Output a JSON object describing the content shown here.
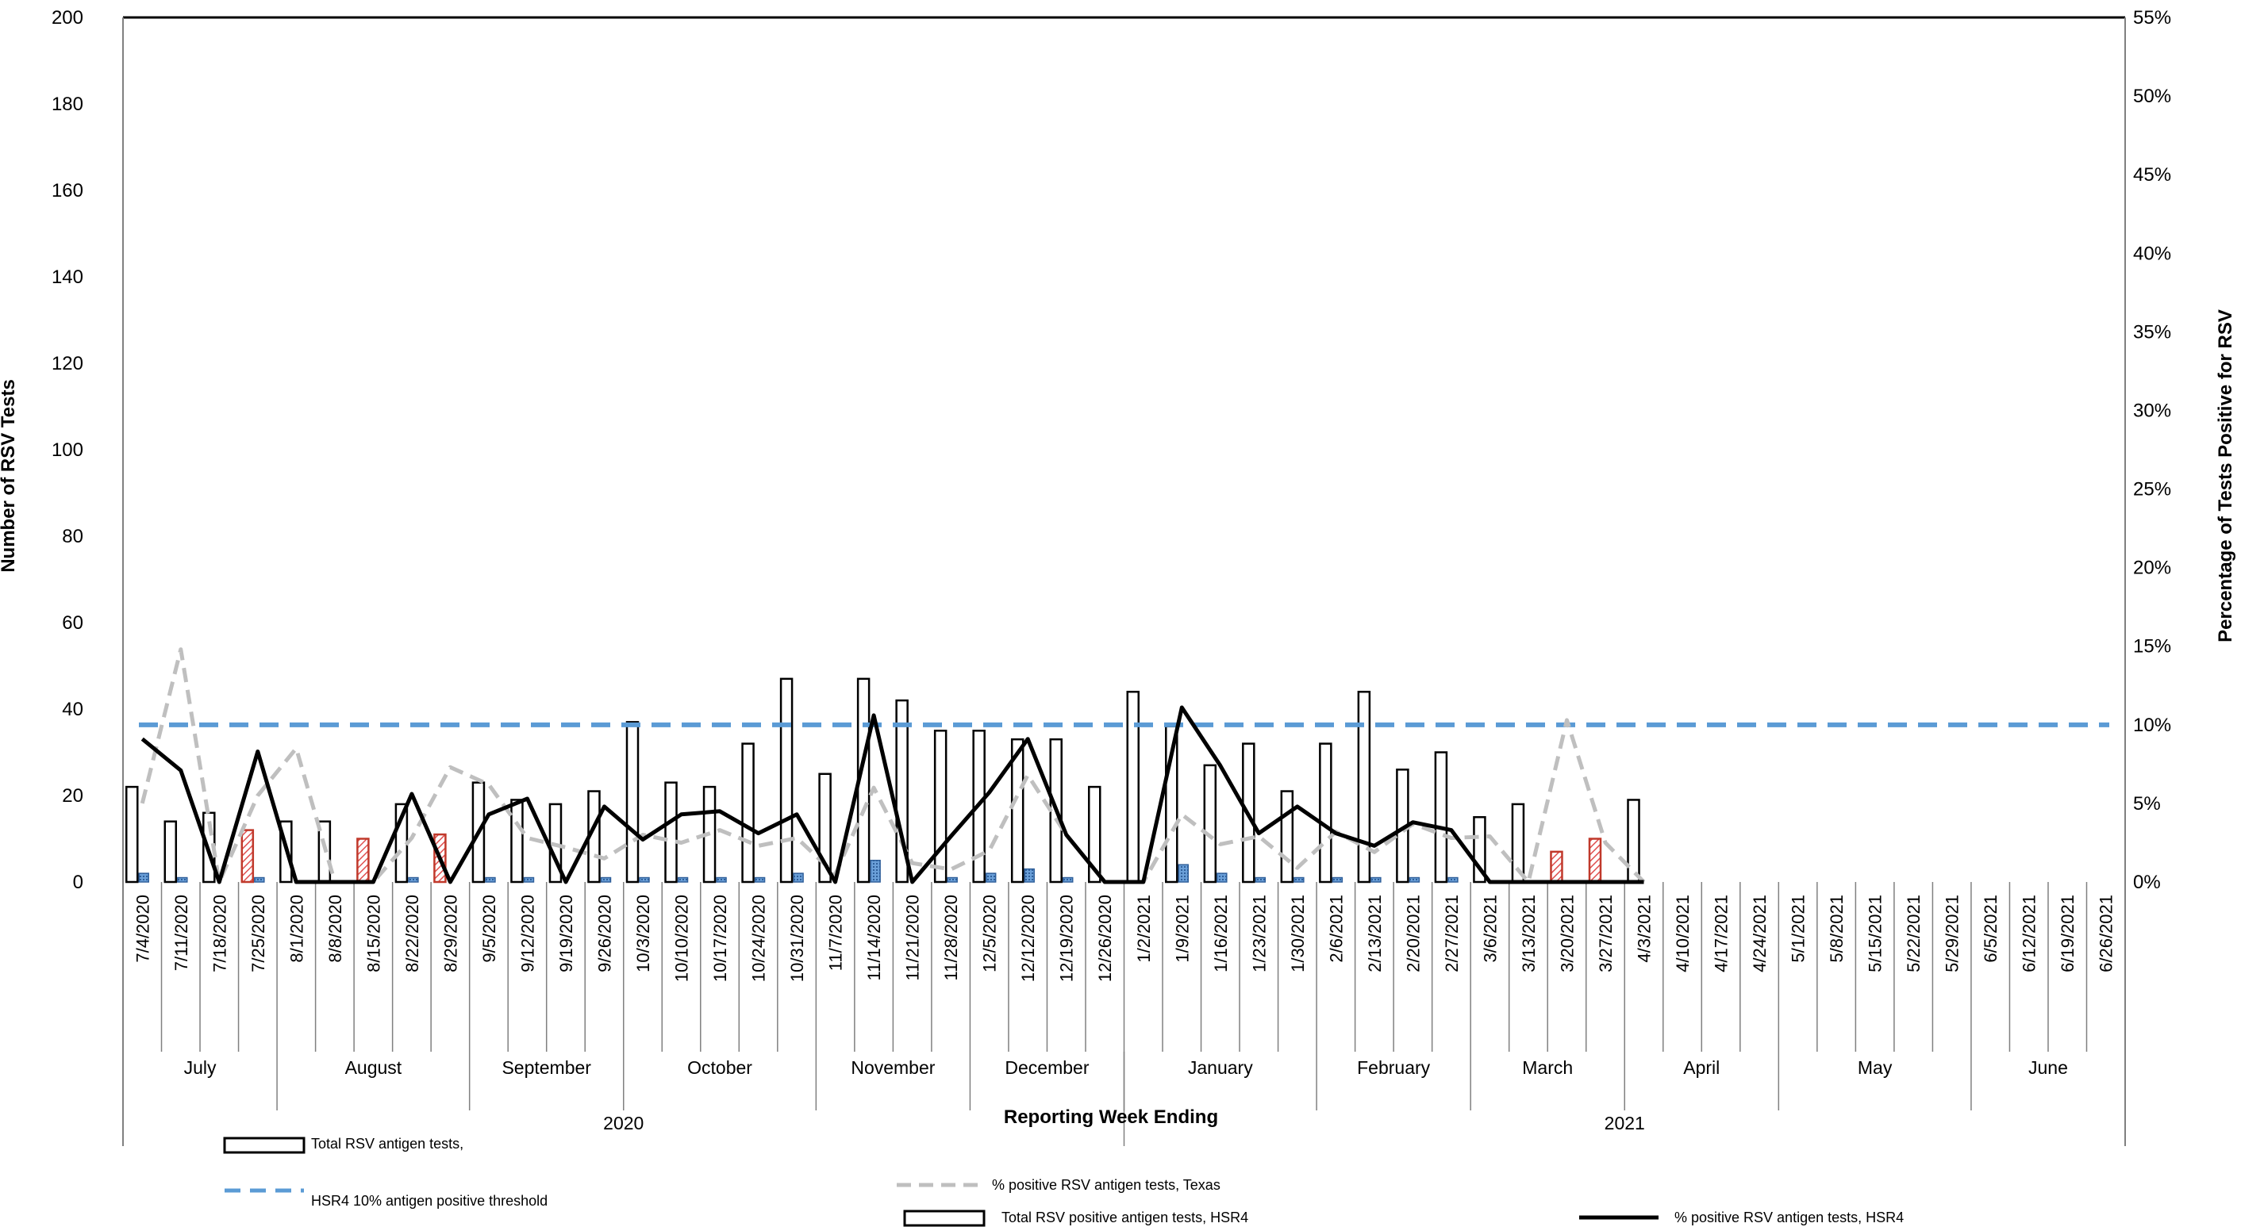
{
  "chart_data": {
    "type": "bar",
    "xlabel": "Reporting Week Ending",
    "ylabel_left": "Number of RSV Tests",
    "ylabel_right": "Percentage of Tests Positive for RSV",
    "ylim_left": [
      0,
      200
    ],
    "ylim_right": [
      0,
      55
    ],
    "left_ticks": [
      "0",
      "20",
      "40",
      "60",
      "80",
      "100",
      "120",
      "140",
      "160",
      "180",
      "200"
    ],
    "right_ticks": [
      "0%",
      "5%",
      "10%",
      "15%",
      "20%",
      "25%",
      "30%",
      "35%",
      "40%",
      "45%",
      "50%",
      "55%"
    ],
    "categories": [
      "7/4/2020",
      "7/11/2020",
      "7/18/2020",
      "7/25/2020",
      "8/1/2020",
      "8/8/2020",
      "8/15/2020",
      "8/22/2020",
      "8/29/2020",
      "9/5/2020",
      "9/12/2020",
      "9/19/2020",
      "9/26/2020",
      "10/3/2020",
      "10/10/2020",
      "10/17/2020",
      "10/24/2020",
      "10/31/2020",
      "11/7/2020",
      "11/14/2020",
      "11/21/2020",
      "11/28/2020",
      "12/5/2020",
      "12/12/2020",
      "12/19/2020",
      "12/26/2020",
      "1/2/2021",
      "1/9/2021",
      "1/16/2021",
      "1/23/2021",
      "1/30/2021",
      "2/6/2021",
      "2/13/2021",
      "2/20/2021",
      "2/27/2021",
      "3/6/2021",
      "3/13/2021",
      "3/20/2021",
      "3/27/2021",
      "4/3/2021",
      "4/10/2021",
      "4/17/2021",
      "4/24/2021",
      "5/1/2021",
      "5/8/2021",
      "5/15/2021",
      "5/22/2021",
      "5/29/2021",
      "6/5/2021",
      "6/12/2021",
      "6/19/2021",
      "6/26/2021"
    ],
    "months": [
      {
        "label": "July",
        "start": 0,
        "end": 3
      },
      {
        "label": "August",
        "start": 4,
        "end": 8
      },
      {
        "label": "September",
        "start": 9,
        "end": 12
      },
      {
        "label": "October",
        "start": 13,
        "end": 17
      },
      {
        "label": "November",
        "start": 18,
        "end": 21
      },
      {
        "label": "December",
        "start": 22,
        "end": 25
      },
      {
        "label": "January",
        "start": 26,
        "end": 30
      },
      {
        "label": "February",
        "start": 31,
        "end": 34
      },
      {
        "label": "March",
        "start": 35,
        "end": 38
      },
      {
        "label": "April",
        "start": 39,
        "end": 42
      },
      {
        "label": "May",
        "start": 43,
        "end": 47
      },
      {
        "label": "June",
        "start": 48,
        "end": 51
      }
    ],
    "years": [
      {
        "label": "2020",
        "start": 0,
        "end": 25
      },
      {
        "label": "2021",
        "start": 26,
        "end": 51
      }
    ],
    "series": [
      {
        "name": "Total RSV antigen tests,",
        "type": "bar",
        "axis": "left",
        "color": "#ffffff",
        "values": [
          22,
          14,
          16,
          12,
          14,
          14,
          10,
          18,
          11,
          23,
          19,
          18,
          21,
          37,
          23,
          22,
          32,
          47,
          25,
          47,
          42,
          35,
          35,
          33,
          33,
          22,
          44,
          36,
          27,
          32,
          21,
          32,
          44,
          26,
          30,
          15,
          18,
          7,
          10,
          19,
          null,
          null,
          null,
          null,
          null,
          null,
          null,
          null,
          null,
          null,
          null,
          null
        ]
      },
      {
        "name": "Total RSV positive antigen tests, HSR4",
        "type": "bar",
        "axis": "left",
        "color": "#5b9bd5",
        "values": [
          2,
          1,
          0,
          1,
          0,
          0,
          0,
          1,
          0,
          1,
          1,
          0,
          1,
          1,
          1,
          1,
          1,
          2,
          0,
          5,
          0,
          1,
          2,
          3,
          1,
          0,
          0,
          4,
          2,
          1,
          1,
          1,
          1,
          1,
          1,
          0,
          0,
          0,
          0,
          0,
          null,
          null,
          null,
          null,
          null,
          null,
          null,
          null,
          null,
          null,
          null,
          null
        ]
      },
      {
        "name": "% positive RSV antigen tests, Texas",
        "type": "line",
        "axis": "right",
        "color": "#bfbfbf",
        "dash": "dashed",
        "values": [
          5,
          14.8,
          0,
          5.5,
          8.5,
          0,
          0,
          2.8,
          7.3,
          6.2,
          2.8,
          2.2,
          1.5,
          3,
          2.5,
          3.3,
          2.3,
          2.8,
          0.5,
          6,
          1.2,
          0.8,
          2,
          6.8,
          3,
          0,
          0,
          4.3,
          2.4,
          2.9,
          0.9,
          3.2,
          1.9,
          3.7,
          2.8,
          2.9,
          0,
          10.3,
          2.5,
          0,
          null,
          null,
          null,
          null,
          null,
          null,
          null,
          null,
          null,
          null,
          null,
          null
        ]
      },
      {
        "name": "% positive RSV antigen tests, HSR4",
        "type": "line",
        "axis": "right",
        "color": "#000000",
        "values": [
          9.1,
          7.1,
          0,
          8.3,
          0,
          0,
          0,
          5.6,
          0,
          4.3,
          5.3,
          0,
          4.8,
          2.7,
          4.3,
          4.5,
          3.1,
          4.3,
          0,
          10.6,
          0,
          2.9,
          5.7,
          9.1,
          3,
          0,
          0,
          11.1,
          7.4,
          3.1,
          4.8,
          3.1,
          2.3,
          3.8,
          3.3,
          0,
          0,
          0,
          0,
          0,
          null,
          null,
          null,
          null,
          null,
          null,
          null,
          null,
          null,
          null,
          null,
          null
        ]
      },
      {
        "name": "HSR4 10% antigen positive threshold",
        "type": "threshold",
        "axis": "right",
        "color": "#5b9bd5",
        "dash": "dashed",
        "value": 10
      }
    ],
    "hatched_weeks": [
      3,
      6,
      8,
      37,
      38
    ],
    "legend": [
      {
        "label": "Total RSV antigen tests,",
        "kind": "box"
      },
      {
        "label": "HSR4 10% antigen positive threshold",
        "kind": "blue-dash"
      },
      {
        "label": "% positive RSV antigen tests, Texas",
        "kind": "grey-dash"
      },
      {
        "label": "Total RSV positive antigen tests, HSR4",
        "kind": "box"
      },
      {
        "label": "% positive RSV antigen tests, HSR4",
        "kind": "black-line"
      }
    ]
  }
}
